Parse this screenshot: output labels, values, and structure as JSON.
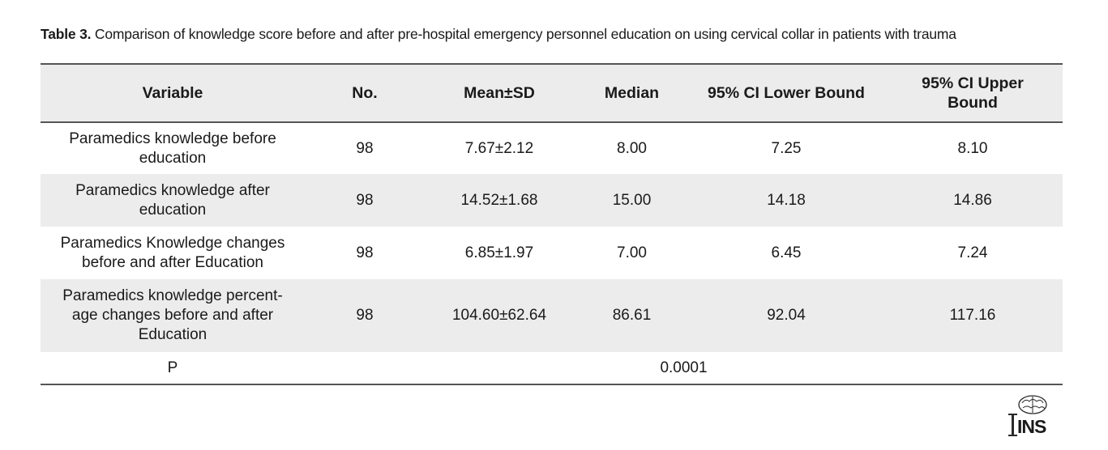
{
  "caption": {
    "label": "Table 3.",
    "text": " Comparison of knowledge score before and after pre-hospital emergency personnel education on using cervical collar in patients with trauma"
  },
  "table": {
    "headers": {
      "variable": "Variable",
      "no": "No.",
      "mean_sd": "Mean±SD",
      "median": "Median",
      "ci_lower": "95% CI Lower Bound",
      "ci_upper_line1": "95% CI Upper",
      "ci_upper_line2": "Bound"
    },
    "rows": [
      {
        "variable_line1": "Paramedics knowledge before",
        "variable_line2": "education",
        "no": "98",
        "mean_sd": "7.67±2.12",
        "median": "8.00",
        "ci_lower": "7.25",
        "ci_upper": "8.10"
      },
      {
        "variable_line1": "Paramedics knowledge after",
        "variable_line2": "education",
        "no": "98",
        "mean_sd": "14.52±1.68",
        "median": "15.00",
        "ci_lower": "14.18",
        "ci_upper": "14.86"
      },
      {
        "variable_line1": "Paramedics Knowledge changes",
        "variable_line2": "before and after Education",
        "no": "98",
        "mean_sd": "6.85±1.97",
        "median": "7.00",
        "ci_lower": "6.45",
        "ci_upper": "7.24"
      },
      {
        "variable_line1": "Paramedics knowledge percent-",
        "variable_line2": "age changes before and after",
        "variable_line3": "Education",
        "no": "98",
        "mean_sd": "104.60±62.64",
        "median": "86.61",
        "ci_lower": "92.04",
        "ci_upper": "117.16"
      }
    ],
    "p_row": {
      "label": "P",
      "value": "0.0001"
    }
  },
  "logo": {
    "text": "INS",
    "icon": "brain-icon"
  },
  "colors": {
    "row_shade": "#ececec",
    "rule": "#555555",
    "text": "#1a1a1a"
  }
}
